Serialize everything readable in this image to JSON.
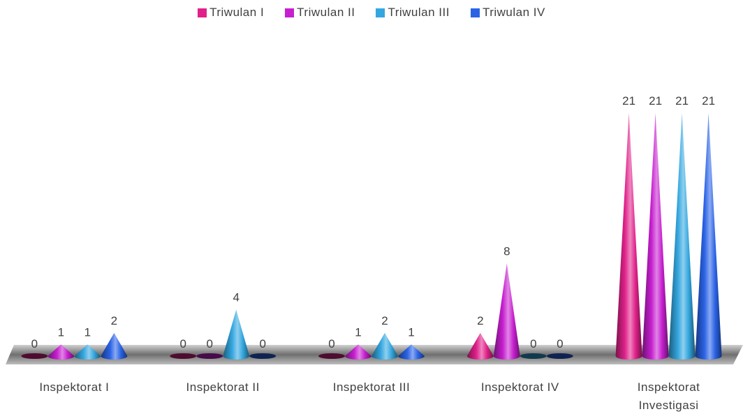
{
  "chart_data": {
    "type": "bar",
    "style": "3d-cone",
    "categories": [
      "Inspektorat I",
      "Inspektorat II",
      "Inspektorat III",
      "Inspektorat IV",
      "Inspektorat Investigasi"
    ],
    "series": [
      {
        "name": "Triwulan I",
        "color": "#e0218a",
        "values": [
          0,
          0,
          0,
          2,
          21
        ]
      },
      {
        "name": "Triwulan II",
        "color": "#c71fd0",
        "values": [
          1,
          0,
          1,
          8,
          21
        ]
      },
      {
        "name": "Triwulan III",
        "color": "#34a7e0",
        "values": [
          1,
          4,
          2,
          0,
          21
        ]
      },
      {
        "name": "Triwulan IV",
        "color": "#2a63e6",
        "values": [
          2,
          0,
          1,
          0,
          21
        ]
      }
    ],
    "legend_position": "top",
    "data_labels": true,
    "grid": false
  }
}
